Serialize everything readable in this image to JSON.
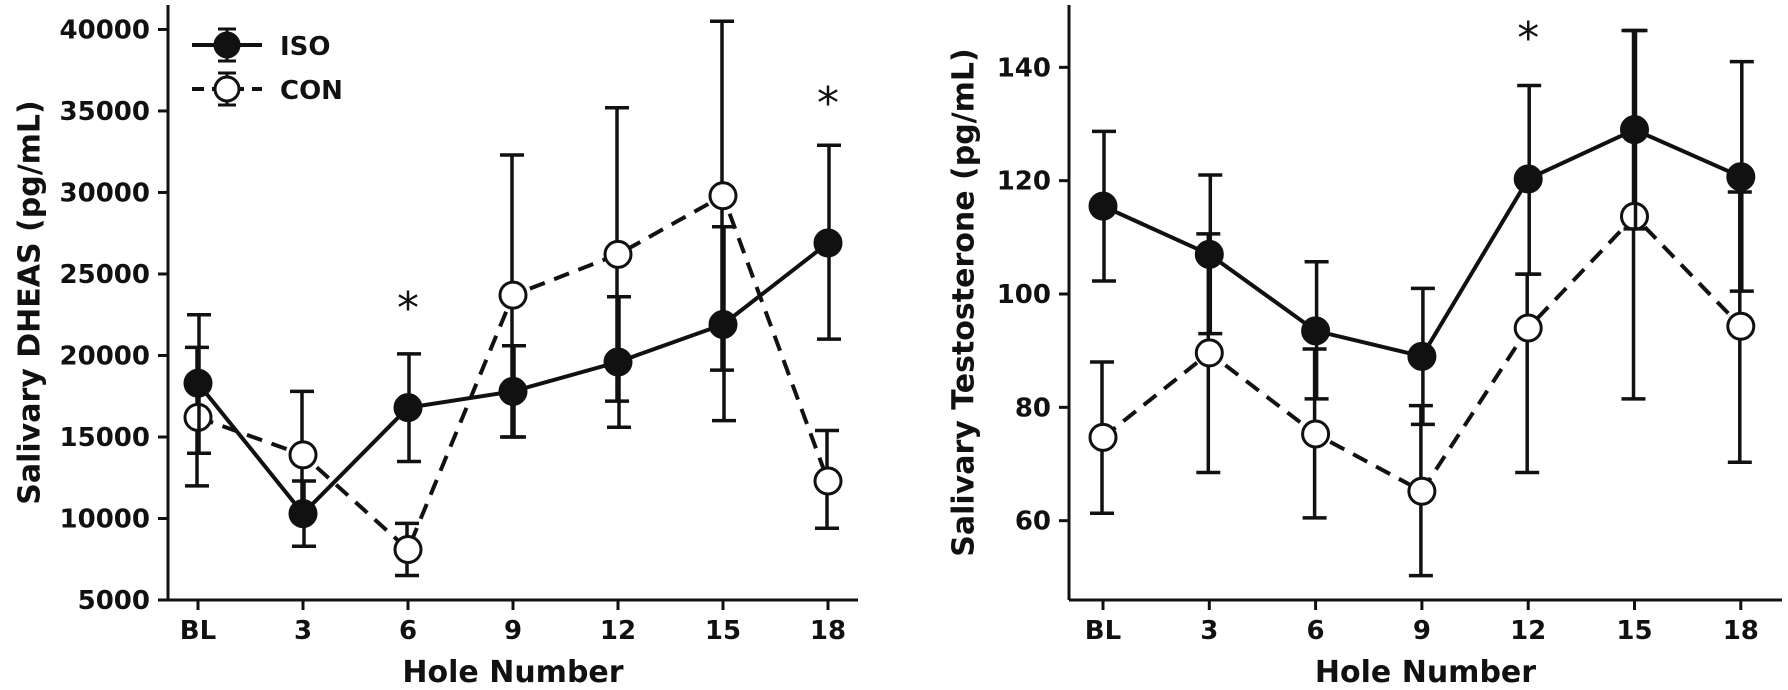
{
  "chart_data": [
    {
      "type": "line",
      "categories": [
        "BL",
        "3",
        "6",
        "9",
        "12",
        "15",
        "18"
      ],
      "xlabel": "Hole Number",
      "ylabel": "Salivary DHEAS (pg/mL)",
      "ylim": [
        5000,
        41500
      ],
      "yticks": [
        5000,
        10000,
        15000,
        20000,
        25000,
        30000,
        35000,
        40000
      ],
      "legend": "top-left",
      "grid": false,
      "series": [
        {
          "name": "ISO",
          "style": "solid",
          "marker": "filled",
          "values": [
            18300,
            10300,
            16800,
            17800,
            19600,
            21900,
            26900
          ],
          "err_low": [
            14000,
            8300,
            13500,
            15000,
            15600,
            16000,
            21000
          ],
          "err_high": [
            22500,
            12300,
            20100,
            20600,
            23600,
            27900,
            32900
          ]
        },
        {
          "name": "CON",
          "style": "dashed",
          "marker": "open",
          "values": [
            16200,
            13900,
            8100,
            23700,
            26200,
            29800,
            12300
          ],
          "err_low": [
            12000,
            10000,
            6500,
            15000,
            17200,
            19100,
            9400
          ],
          "err_high": [
            20500,
            17800,
            9700,
            32300,
            35200,
            40500,
            15400
          ]
        }
      ],
      "significance": [
        {
          "category": "6",
          "label": "*",
          "y": 23700
        },
        {
          "category": "18",
          "label": "*",
          "y": 36300
        }
      ]
    },
    {
      "type": "line",
      "categories": [
        "BL",
        "3",
        "6",
        "9",
        "12",
        "15",
        "18"
      ],
      "xlabel": "Hole Number",
      "ylabel": "Salivary Testosterone (pg/mL)",
      "ylim": [
        46,
        151
      ],
      "yticks": [
        60,
        80,
        100,
        120,
        140
      ],
      "legend": "none",
      "grid": false,
      "series": [
        {
          "name": "ISO",
          "style": "solid",
          "marker": "filled",
          "values": [
            115.5,
            107.0,
            93.5,
            89.0,
            120.3,
            129.0,
            120.7
          ],
          "err_low": [
            102.3,
            93.0,
            81.5,
            77.0,
            103.5,
            111.5,
            100.5
          ],
          "err_high": [
            128.7,
            121.0,
            105.7,
            101.0,
            136.8,
            146.5,
            141.0
          ]
        },
        {
          "name": "CON",
          "style": "dashed",
          "marker": "open",
          "values": [
            74.7,
            89.6,
            75.3,
            65.2,
            94.0,
            113.7,
            94.3
          ],
          "err_low": [
            61.3,
            68.5,
            60.5,
            50.3,
            68.5,
            81.5,
            70.3
          ],
          "err_high": [
            88.0,
            110.6,
            90.3,
            80.3,
            103.5,
            146.5,
            118.0
          ]
        }
      ],
      "significance": [
        {
          "category": "12",
          "label": "*",
          "y": 147.5
        }
      ]
    }
  ]
}
